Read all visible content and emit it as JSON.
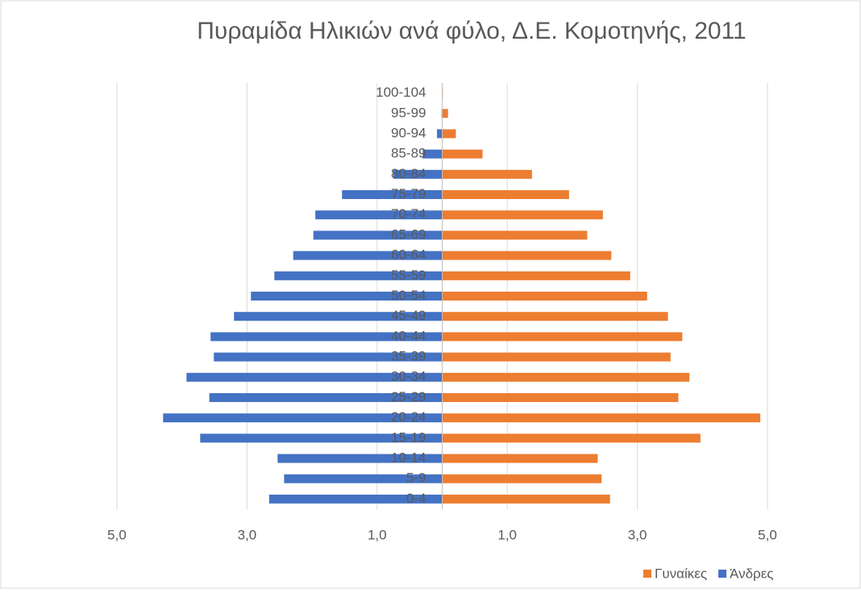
{
  "chart_data": {
    "type": "pyramid",
    "title": "Πυραμίδα Ηλικιών ανά φύλο, Δ.Ε. Κομοτηνής, 2011",
    "categories": [
      "0-4",
      "5-9",
      "10-14",
      "15-19",
      "20-24",
      "25-29",
      "30-34",
      "35-39",
      "40-44",
      "45-49",
      "50-54",
      "55-59",
      "60-64",
      "65-69",
      "70-74",
      "75-79",
      "80-84",
      "85-89",
      "90-94",
      "95-99",
      "100-104"
    ],
    "series": [
      {
        "name": "Γυναίκες",
        "color": "#ed7d31",
        "values": [
          2.58,
          2.45,
          2.39,
          3.97,
          4.89,
          3.63,
          3.8,
          3.51,
          3.69,
          3.47,
          3.15,
          2.89,
          2.6,
          2.23,
          2.47,
          1.95,
          1.38,
          0.62,
          0.21,
          0.09,
          0.01
        ]
      },
      {
        "name": "Άνδρες",
        "color": "#4472c4",
        "values": [
          -2.66,
          -2.43,
          -2.53,
          -3.72,
          -4.29,
          -3.58,
          -3.93,
          -3.51,
          -3.56,
          -3.2,
          -2.94,
          -2.58,
          -2.29,
          -1.98,
          -1.95,
          -1.54,
          -0.75,
          -0.3,
          -0.08,
          -0.01,
          0
        ]
      }
    ],
    "xlim": [
      -5,
      5
    ],
    "xticks": [
      {
        "value": -5,
        "label": "5,0"
      },
      {
        "value": -3,
        "label": "3,0"
      },
      {
        "value": -1,
        "label": "1,0"
      },
      {
        "value": 1,
        "label": "1,0"
      },
      {
        "value": 3,
        "label": "3,0"
      },
      {
        "value": 5,
        "label": "5,0"
      }
    ],
    "grid": true,
    "legend": "bottom-right"
  }
}
